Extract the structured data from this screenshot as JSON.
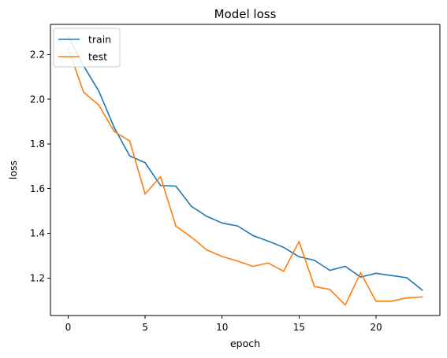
{
  "chart_data": {
    "type": "line",
    "title": "Model loss",
    "xlabel": "epoch",
    "ylabel": "loss",
    "xlim": [
      -1.15,
      24.15
    ],
    "ylim": [
      1.032,
      2.335
    ],
    "xticks": [
      0,
      5,
      10,
      15,
      20
    ],
    "yticks": [
      1.2,
      1.4,
      1.6,
      1.8,
      2.0,
      2.2
    ],
    "ytick_labels": [
      "1.2",
      "1.4",
      "1.6",
      "1.8",
      "2.0",
      "2.2"
    ],
    "grid": false,
    "legend": {
      "position": "upper-left",
      "labels": [
        "train",
        "test"
      ]
    },
    "x": [
      0,
      1,
      2,
      3,
      4,
      5,
      6,
      7,
      8,
      9,
      10,
      11,
      12,
      13,
      14,
      15,
      16,
      17,
      18,
      19,
      20,
      21,
      22,
      23
    ],
    "series": [
      {
        "name": "train",
        "color": "#1f77b4",
        "values": [
          2.283,
          2.15,
          2.035,
          1.872,
          1.746,
          1.716,
          1.614,
          1.611,
          1.521,
          1.476,
          1.446,
          1.433,
          1.39,
          1.365,
          1.337,
          1.295,
          1.279,
          1.234,
          1.252,
          1.204,
          1.221,
          1.211,
          1.201,
          1.146
        ]
      },
      {
        "name": "test",
        "color": "#ff7f0e",
        "values": [
          2.228,
          2.032,
          1.973,
          1.855,
          1.813,
          1.576,
          1.654,
          1.432,
          1.383,
          1.326,
          1.296,
          1.276,
          1.252,
          1.267,
          1.23,
          1.363,
          1.162,
          1.149,
          1.079,
          1.223,
          1.096,
          1.096,
          1.111,
          1.115
        ]
      }
    ]
  }
}
